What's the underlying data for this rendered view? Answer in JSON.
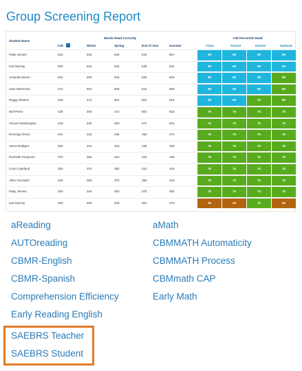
{
  "header": {
    "title": "Group Screening Report"
  },
  "table": {
    "student_header": "Student Name",
    "groups": [
      "Words Read Correctly",
      "Fall Percentile Rank"
    ],
    "score_columns": [
      "Fall",
      "Winter",
      "Spring",
      "End of Year",
      "Summer"
    ],
    "rank_columns": [
      "Class",
      "School",
      "District",
      "National"
    ],
    "rows": [
      {
        "name": "Patty Jensen",
        "scores": [
          515,
          526,
          528,
          544,
          557
        ],
        "ranks": [
          {
            "value": 99,
            "color": "#1fb6de"
          },
          {
            "value": 99,
            "color": "#1fb6de"
          },
          {
            "value": 99,
            "color": "#1fb6de"
          },
          {
            "value": 99,
            "color": "#1fb6de"
          }
        ]
      },
      {
        "name": "Karl Murray",
        "scores": [
          503,
          515,
          526,
          539,
          544
        ],
        "ranks": [
          {
            "value": 99,
            "color": "#1fb6de"
          },
          {
            "value": 99,
            "color": "#1fb6de"
          },
          {
            "value": 99,
            "color": "#1fb6de"
          },
          {
            "value": 99,
            "color": "#1fb6de"
          }
        ]
      },
      {
        "name": "Amanda Simon",
        "scores": [
          501,
          500,
          515,
          526,
          526
        ],
        "ranks": [
          {
            "value": 99,
            "color": "#1fb6de"
          },
          {
            "value": 99,
            "color": "#1fb6de"
          },
          {
            "value": 99,
            "color": "#1fb6de"
          },
          {
            "value": 86,
            "color": "#58ab1d"
          }
        ]
      },
      {
        "name": "Jane McKenzie",
        "scores": [
          472,
          501,
          503,
          515,
          526
        ],
        "ranks": [
          {
            "value": 99,
            "color": "#1fb6de"
          },
          {
            "value": 99,
            "color": "#1fb6de"
          },
          {
            "value": 99,
            "color": "#1fb6de"
          },
          {
            "value": 86,
            "color": "#58ab1d"
          }
        ]
      },
      {
        "name": "Peggy Shelton",
        "scores": [
          450,
          472,
          501,
          503,
          515
        ],
        "ranks": [
          {
            "value": 99,
            "color": "#1fb6de"
          },
          {
            "value": 99,
            "color": "#1fb6de"
          },
          {
            "value": 75,
            "color": "#58ab1d"
          },
          {
            "value": 86,
            "color": "#58ab1d"
          }
        ]
      },
      {
        "name": "Neil Perez",
        "scores": [
          436,
          450,
          472,
          501,
          503
        ],
        "ranks": [
          {
            "value": 75,
            "color": "#58ab1d"
          },
          {
            "value": 75,
            "color": "#58ab1d"
          },
          {
            "value": 75,
            "color": "#58ab1d"
          },
          {
            "value": 75,
            "color": "#58ab1d"
          }
        ]
      },
      {
        "name": "Vincent Washington",
        "scores": [
          418,
          436,
          450,
          472,
          501
        ],
        "ranks": [
          {
            "value": 75,
            "color": "#58ab1d"
          },
          {
            "value": 75,
            "color": "#58ab1d"
          },
          {
            "value": 75,
            "color": "#58ab1d"
          },
          {
            "value": 75,
            "color": "#58ab1d"
          }
        ]
      },
      {
        "name": "Domingo Dixon",
        "scores": [
          410,
          418,
          436,
          450,
          472
        ],
        "ranks": [
          {
            "value": 75,
            "color": "#58ab1d"
          },
          {
            "value": 75,
            "color": "#58ab1d"
          },
          {
            "value": 75,
            "color": "#58ab1d"
          },
          {
            "value": 75,
            "color": "#58ab1d"
          }
        ]
      },
      {
        "name": "Verna Rodgers",
        "scores": [
          382,
          410,
          418,
          436,
          450
        ],
        "ranks": [
          {
            "value": 75,
            "color": "#58ab1d"
          },
          {
            "value": 75,
            "color": "#58ab1d"
          },
          {
            "value": 75,
            "color": "#58ab1d"
          },
          {
            "value": 75,
            "color": "#58ab1d"
          }
        ]
      },
      {
        "name": "Rochelle Ferguson",
        "scores": [
          370,
          382,
          410,
          418,
          436
        ],
        "ranks": [
          {
            "value": 75,
            "color": "#58ab1d"
          },
          {
            "value": 75,
            "color": "#58ab1d"
          },
          {
            "value": 75,
            "color": "#58ab1d"
          },
          {
            "value": 75,
            "color": "#58ab1d"
          }
        ]
      },
      {
        "name": "Cora Copeland",
        "scores": [
          353,
          370,
          382,
          410,
          418
        ],
        "ranks": [
          {
            "value": 75,
            "color": "#58ab1d"
          },
          {
            "value": 75,
            "color": "#58ab1d"
          },
          {
            "value": 75,
            "color": "#58ab1d"
          },
          {
            "value": 75,
            "color": "#58ab1d"
          }
        ]
      },
      {
        "name": "Allen Gonzalez",
        "scores": [
          340,
          353,
          370,
          382,
          410
        ],
        "ranks": [
          {
            "value": 75,
            "color": "#58ab1d"
          },
          {
            "value": 75,
            "color": "#58ab1d"
          },
          {
            "value": 75,
            "color": "#58ab1d"
          },
          {
            "value": 75,
            "color": "#58ab1d"
          }
        ]
      },
      {
        "name": "Patty Jensen",
        "scores": [
          293,
          340,
          353,
          370,
          382
        ],
        "ranks": [
          {
            "value": 75,
            "color": "#58ab1d"
          },
          {
            "value": 75,
            "color": "#58ab1d"
          },
          {
            "value": 75,
            "color": "#58ab1d"
          },
          {
            "value": 75,
            "color": "#58ab1d"
          }
        ]
      },
      {
        "name": "Karl Murray",
        "scores": [
          290,
          293,
          340,
          353,
          370
        ],
        "ranks": [
          {
            "value": 25,
            "color": "#b1650f"
          },
          {
            "value": 25,
            "color": "#b1650f"
          },
          {
            "value": 75,
            "color": "#58ab1d"
          },
          {
            "value": 50,
            "color": "#b1650f"
          }
        ]
      }
    ]
  },
  "links": {
    "left": [
      "aReading",
      "AUTOreading",
      "CBMR-English",
      "CBMR-Spanish",
      "Comprehension Efficiency",
      "Early Reading English"
    ],
    "right": [
      "aMath",
      "CBMMATH Automaticity",
      "CBMMATH Process",
      "CBMmath CAP",
      "Early Math"
    ],
    "highlighted": [
      "SAEBRS Teacher",
      "SAEBRS Student"
    ]
  }
}
